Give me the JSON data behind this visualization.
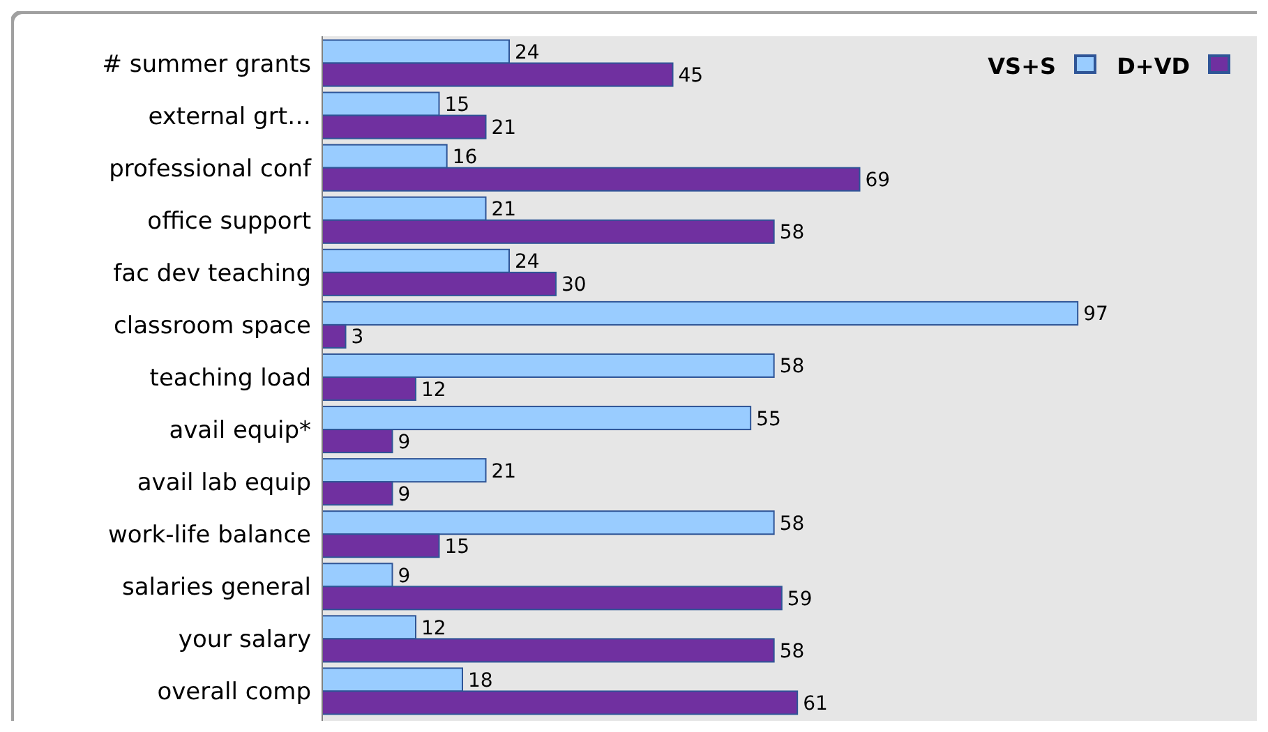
{
  "chart_data": {
    "type": "bar",
    "orientation": "horizontal",
    "categories": [
      "# summer grants",
      "external grt…",
      "professional conf",
      "office support",
      "fac dev teaching",
      "classroom space",
      "teaching load",
      "avail equip*",
      "avail lab equip",
      "work-life balance",
      "salaries general",
      "your salary",
      "overall comp"
    ],
    "series": [
      {
        "name": "VS+S",
        "color": "#99ccff",
        "values": [
          24,
          15,
          16,
          21,
          24,
          97,
          58,
          55,
          21,
          58,
          9,
          12,
          18
        ]
      },
      {
        "name": "D+VD",
        "color": "#7030a0",
        "values": [
          45,
          21,
          69,
          58,
          30,
          3,
          12,
          9,
          9,
          15,
          59,
          58,
          61
        ]
      }
    ],
    "xlim": [
      0,
      120
    ],
    "data_labels": true,
    "legend": "top right",
    "tick_labels": "y"
  }
}
